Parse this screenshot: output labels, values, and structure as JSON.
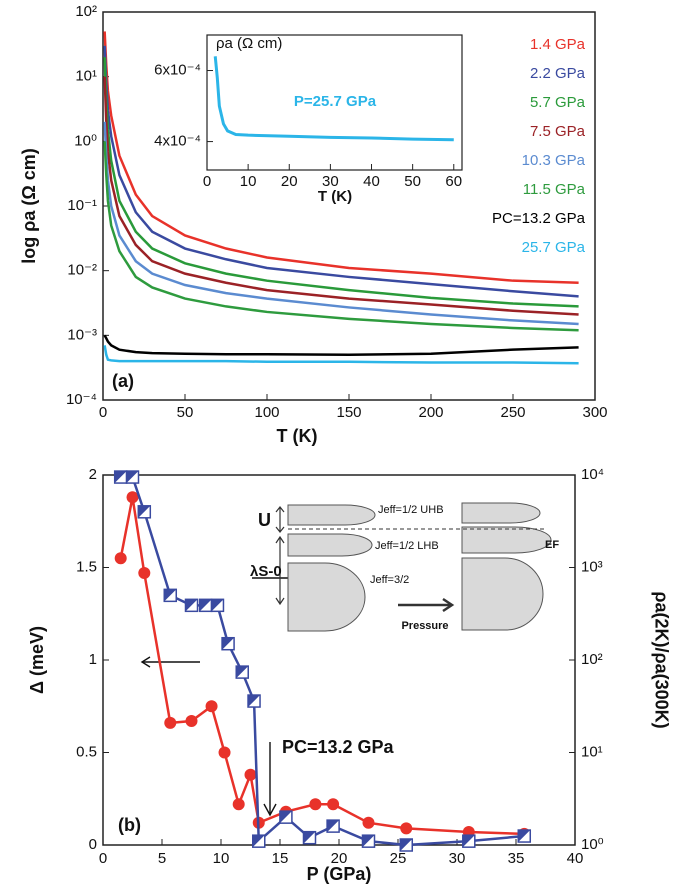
{
  "chart_data": [
    {
      "type": "line",
      "xlabel": "T (K)",
      "ylabel": "log ρa (Ω cm)",
      "panel_label": "(a)",
      "xlim": [
        0,
        300
      ],
      "xticks": [
        0,
        50,
        100,
        150,
        200,
        250,
        300
      ],
      "ylim": [
        0.0001,
        100
      ],
      "yscale": "log",
      "yticks": [
        {
          "value": 0.0001,
          "label": "10⁻⁴"
        },
        {
          "value": 0.001,
          "label": "10⁻³"
        },
        {
          "value": 0.01,
          "label": "10⁻²"
        },
        {
          "value": 0.1,
          "label": "10⁻¹"
        },
        {
          "value": 1,
          "label": "10⁰"
        },
        {
          "value": 10,
          "label": "10¹"
        },
        {
          "value": 100,
          "label": "10²"
        }
      ],
      "x": [
        1,
        2,
        3,
        5,
        10,
        20,
        30,
        50,
        75,
        100,
        150,
        200,
        250,
        290
      ],
      "series": [
        {
          "name": "1.4 GPa",
          "color": "#e8322a",
          "values": [
            50,
            15,
            6,
            2.5,
            0.6,
            0.15,
            0.07,
            0.035,
            0.022,
            0.016,
            0.011,
            0.009,
            0.007,
            0.0065
          ]
        },
        {
          "name": "2.2 GPa",
          "color": "#3a4aa0",
          "values": [
            30,
            8,
            3,
            1.2,
            0.3,
            0.08,
            0.04,
            0.022,
            0.015,
            0.011,
            0.008,
            0.0062,
            0.0048,
            0.004
          ]
        },
        {
          "name": "5.7 GPa",
          "color": "#2a9a3a",
          "values": [
            20,
            4,
            1.5,
            0.5,
            0.12,
            0.04,
            0.022,
            0.013,
            0.009,
            0.007,
            0.005,
            0.0038,
            0.0031,
            0.0028
          ]
        },
        {
          "name": "7.5 GPa",
          "color": "#9b2226",
          "values": [
            10,
            2,
            0.7,
            0.25,
            0.07,
            0.025,
            0.014,
            0.009,
            0.0065,
            0.005,
            0.0037,
            0.003,
            0.0024,
            0.0021
          ]
        },
        {
          "name": "10.3 GPa",
          "color": "#5b8bd0",
          "values": [
            2,
            0.6,
            0.25,
            0.1,
            0.035,
            0.014,
            0.009,
            0.006,
            0.0045,
            0.0037,
            0.0027,
            0.0021,
            0.0017,
            0.0015
          ]
        },
        {
          "name": "11.5 GPa",
          "color": "#2e9b3e",
          "values": [
            1,
            0.3,
            0.12,
            0.05,
            0.02,
            0.008,
            0.0055,
            0.0037,
            0.0028,
            0.0023,
            0.0018,
            0.0015,
            0.0013,
            0.0012
          ]
        },
        {
          "name": "PC=13.2 GPa",
          "color": "#000000",
          "values": [
            0.001,
            0.0009,
            0.0008,
            0.0007,
            0.0006,
            0.00055,
            0.00053,
            0.00052,
            0.00051,
            0.00051,
            0.0005,
            0.00052,
            0.0006,
            0.00065
          ]
        },
        {
          "name": "25.7 GPa",
          "color": "#2bb5e8",
          "values": [
            0.0007,
            0.0005,
            0.00042,
            0.00041,
            0.0004,
            0.0004,
            0.0004,
            0.0004,
            0.0004,
            0.00039,
            0.00039,
            0.00038,
            0.00038,
            0.00037
          ]
        }
      ],
      "inset": {
        "type": "line",
        "ylabel": "ρa (Ω cm)",
        "xlabel": "T (K)",
        "annotation": "P=25.7 GPa",
        "color": "#2bb5e8",
        "xlim": [
          0,
          62
        ],
        "xticks": [
          0,
          10,
          20,
          30,
          40,
          50,
          60
        ],
        "ylim": [
          0.00032,
          0.0007
        ],
        "yticks": [
          {
            "value": 0.0004,
            "label": "4x10⁻⁴"
          },
          {
            "value": 0.0006,
            "label": "6x10⁻⁴"
          }
        ],
        "x": [
          2,
          2.5,
          3,
          4,
          5,
          7,
          10,
          20,
          30,
          40,
          50,
          60
        ],
        "values": [
          0.00064,
          0.00058,
          0.0005,
          0.00045,
          0.00043,
          0.00042,
          0.000418,
          0.000415,
          0.000412,
          0.00041,
          0.000407,
          0.000405
        ]
      }
    },
    {
      "type": "scatter",
      "xlabel": "P (GPa)",
      "ylabel": "Δ (meV)",
      "y2label": "ρa(2K)/ρa(300K)",
      "panel_label": "(b)",
      "xlim": [
        0,
        40
      ],
      "xticks": [
        0,
        5,
        10,
        15,
        20,
        25,
        30,
        35,
        40
      ],
      "ylim": [
        0,
        2
      ],
      "yticks": [
        0,
        0.5,
        1,
        1.5,
        2
      ],
      "y2lim": [
        1,
        10000
      ],
      "y2scale": "log",
      "y2ticks": [
        {
          "value": 1,
          "label": "10⁰"
        },
        {
          "value": 10,
          "label": "10¹"
        },
        {
          "value": 100,
          "label": "10²"
        },
        {
          "value": 1000,
          "label": "10³"
        },
        {
          "value": 10000,
          "label": "10⁴"
        }
      ],
      "series": [
        {
          "color": "#e8322a",
          "marker": "circle",
          "x": [
            1.5,
            2.5,
            3.5,
            5.7,
            7.5,
            9.2,
            10.3,
            11.5,
            12.5,
            13.2,
            15.5,
            18,
            19.5,
            22.5,
            25.7,
            31,
            35.7
          ],
          "values": [
            1.55,
            1.88,
            1.47,
            0.66,
            0.67,
            0.75,
            0.5,
            0.22,
            0.38,
            0.12,
            0.18,
            0.22,
            0.22,
            0.12,
            0.09,
            0.07,
            0.06
          ]
        },
        {
          "color": "#3a4aa0",
          "marker": "square",
          "axis": "y2",
          "x": [
            1.5,
            2.5,
            3.5,
            5.7,
            7.5,
            8.7,
            9.7,
            10.6,
            11.8,
            12.8,
            13.2,
            15.5,
            17.5,
            19.5,
            22.5,
            25.7,
            31,
            35.7
          ],
          "values": [
            9500,
            9500,
            4000,
            500,
            390,
            390,
            390,
            150,
            74,
            36,
            1.1,
            2.0,
            1.2,
            1.6,
            1.1,
            1.0,
            1.1,
            1.25
          ]
        }
      ],
      "annotation": "PC=13.2 GPa",
      "diagram": {
        "u": "U",
        "lambda": "λS-0",
        "uhb": "Jeff=1/2 UHB",
        "lhb": "Jeff=1/2 LHB",
        "j32": "Jeff=3/2",
        "ef": "EF",
        "pressure": "Pressure"
      }
    }
  ]
}
